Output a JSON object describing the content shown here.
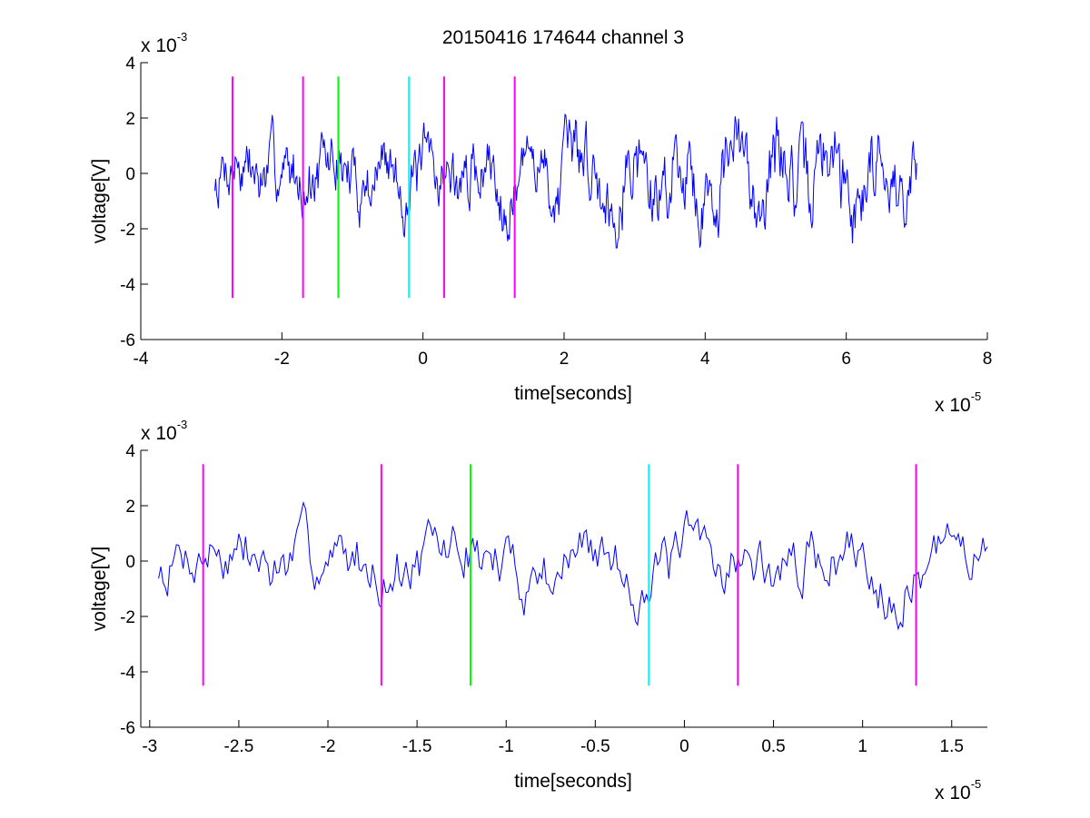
{
  "title": "20150416 174644 channel 3",
  "chart_data": [
    {
      "type": "line",
      "panel": "top",
      "xlabel": "time[seconds]",
      "ylabel": "voltage[V]",
      "x_multiplier_label": {
        "base": "x 10",
        "exp": "-5"
      },
      "y_multiplier_label": {
        "base": "x 10",
        "exp": "-3"
      },
      "xlim": [
        -4,
        8
      ],
      "ylim": [
        -6,
        4
      ],
      "xticks": [
        "-4",
        "-2",
        "0",
        "2",
        "4",
        "6",
        "8"
      ],
      "yticks": [
        "-6",
        "-4",
        "-2",
        "0",
        "2",
        "4"
      ],
      "grid": false,
      "signal": {
        "color": "#0000ff",
        "x_start": -2.95,
        "x_end": 7.0,
        "seed": 7
      },
      "markers": [
        {
          "x": -2.7,
          "color": "#ff00ff",
          "y_range": [
            -4.5,
            3.5
          ]
        },
        {
          "x": -1.7,
          "color": "#ff00ff",
          "y_range": [
            -4.5,
            3.5
          ]
        },
        {
          "x": -1.2,
          "color": "#00ff00",
          "y_range": [
            -4.5,
            3.5
          ]
        },
        {
          "x": -0.2,
          "color": "#00ffff",
          "y_range": [
            -4.5,
            3.5
          ]
        },
        {
          "x": 0.3,
          "color": "#ff00ff",
          "y_range": [
            -4.5,
            3.5
          ]
        },
        {
          "x": 1.3,
          "color": "#ff00ff",
          "y_range": [
            -4.5,
            3.5
          ]
        }
      ]
    },
    {
      "type": "line",
      "panel": "bottom",
      "xlabel": "time[seconds]",
      "ylabel": "voltage[V]",
      "x_multiplier_label": {
        "base": "x 10",
        "exp": "-5"
      },
      "y_multiplier_label": {
        "base": "x 10",
        "exp": "-3"
      },
      "xlim": [
        -3.05,
        1.7
      ],
      "ylim": [
        -6,
        4
      ],
      "xticks": [
        "-3",
        "-2.5",
        "-2",
        "-1.5",
        "-1",
        "-0.5",
        "0",
        "0.5",
        "1",
        "1.5"
      ],
      "yticks": [
        "-6",
        "-4",
        "-2",
        "0",
        "2",
        "4"
      ],
      "grid": false,
      "signal": {
        "color": "#0000ff",
        "x_start": -2.95,
        "x_end": 1.7,
        "seed": 7
      },
      "markers": [
        {
          "x": -2.7,
          "color": "#ff00ff",
          "y_range": [
            -4.5,
            3.5
          ]
        },
        {
          "x": -1.7,
          "color": "#ff00ff",
          "y_range": [
            -4.5,
            3.5
          ]
        },
        {
          "x": -1.2,
          "color": "#00ff00",
          "y_range": [
            -4.5,
            3.5
          ]
        },
        {
          "x": -0.2,
          "color": "#00ffff",
          "y_range": [
            -4.5,
            3.5
          ]
        },
        {
          "x": 0.3,
          "color": "#ff00ff",
          "y_range": [
            -4.5,
            3.5
          ]
        },
        {
          "x": 1.3,
          "color": "#ff00ff",
          "y_range": [
            -4.5,
            3.5
          ]
        }
      ]
    }
  ]
}
